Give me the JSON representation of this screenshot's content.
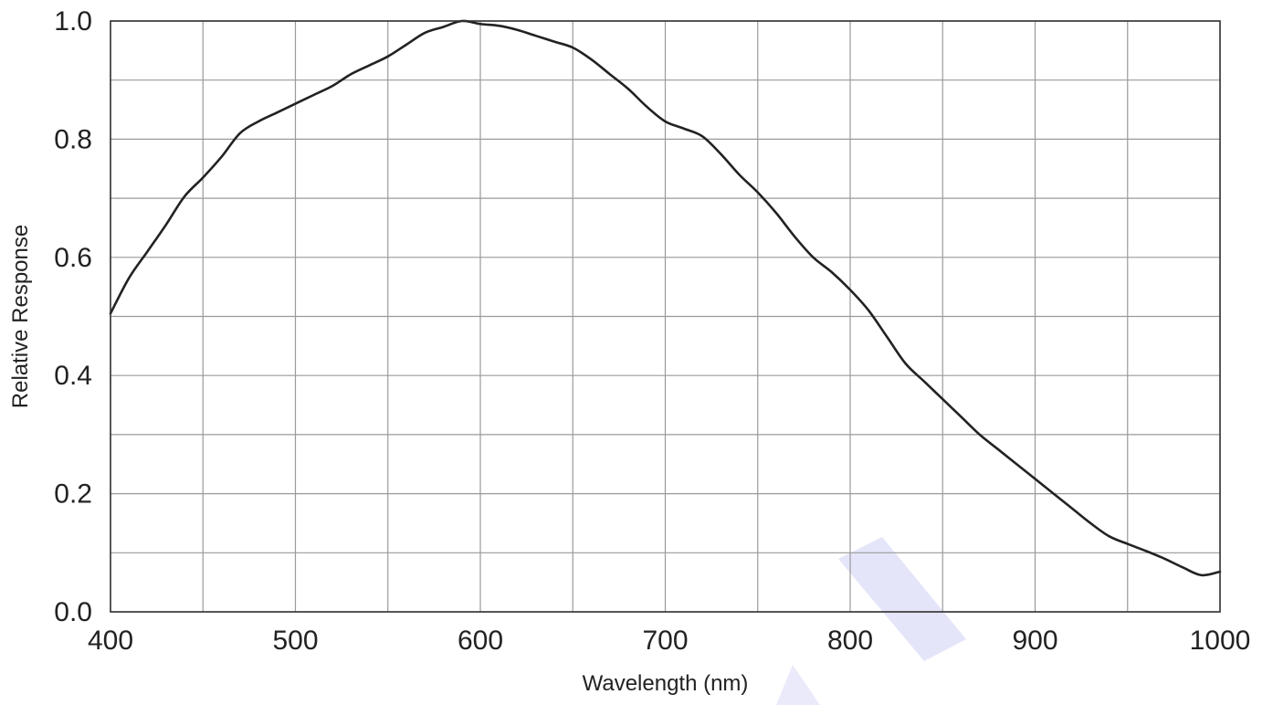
{
  "chart_data": {
    "type": "line",
    "title": "",
    "xlabel": "Wavelength (nm)",
    "ylabel": "Relative Response",
    "xlim": [
      400,
      1000
    ],
    "ylim": [
      0.0,
      1.0
    ],
    "x_ticks": [
      400,
      500,
      600,
      700,
      800,
      900,
      1000
    ],
    "x_tick_labels": [
      "400",
      "500",
      "600",
      "700",
      "800",
      "900",
      "1000"
    ],
    "y_ticks": [
      0.0,
      0.2,
      0.4,
      0.6,
      0.8,
      1.0
    ],
    "y_tick_labels": [
      "0.0",
      "0.2",
      "0.4",
      "0.6",
      "0.8",
      "1.0"
    ],
    "x_grid_step": 50,
    "y_grid_step": 0.1,
    "grid": true,
    "legend": "none",
    "colors": {
      "line": "#222222",
      "grid": "#9a9a9a",
      "frame": "#333333",
      "watermark": "#dcdcf8"
    },
    "series": [
      {
        "x": [
          400,
          410,
          420,
          430,
          440,
          450,
          460,
          470,
          480,
          490,
          500,
          510,
          520,
          530,
          540,
          550,
          560,
          570,
          580,
          590,
          600,
          610,
          620,
          630,
          640,
          650,
          660,
          670,
          680,
          690,
          700,
          710,
          720,
          730,
          740,
          750,
          760,
          770,
          780,
          790,
          800,
          810,
          820,
          830,
          840,
          850,
          860,
          870,
          880,
          890,
          900,
          910,
          920,
          930,
          940,
          950,
          960,
          970,
          980,
          990,
          1000
        ],
        "y": [
          0.505,
          0.565,
          0.61,
          0.655,
          0.703,
          0.735,
          0.77,
          0.81,
          0.83,
          0.845,
          0.86,
          0.875,
          0.89,
          0.91,
          0.925,
          0.94,
          0.96,
          0.98,
          0.99,
          1.0,
          0.995,
          0.992,
          0.985,
          0.975,
          0.965,
          0.955,
          0.935,
          0.91,
          0.885,
          0.855,
          0.83,
          0.818,
          0.805,
          0.775,
          0.74,
          0.71,
          0.675,
          0.635,
          0.6,
          0.575,
          0.545,
          0.51,
          0.465,
          0.42,
          0.39,
          0.36,
          0.33,
          0.3,
          0.275,
          0.25,
          0.225,
          0.2,
          0.175,
          0.15,
          0.128,
          0.115,
          0.103,
          0.09,
          0.075,
          0.062,
          0.068
        ]
      }
    ]
  }
}
